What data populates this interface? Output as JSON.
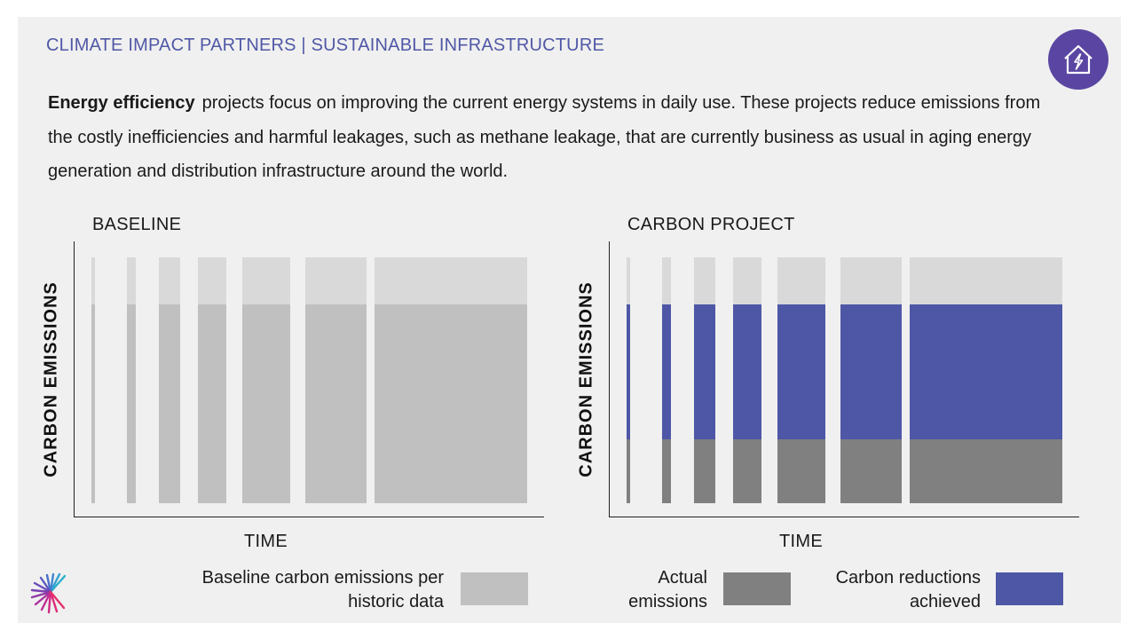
{
  "header": {
    "title": "CLIMATE IMPACT PARTNERS | SUSTAINABLE INFRASTRUCTURE"
  },
  "badge": {
    "icon": "house-energy-icon"
  },
  "intro": {
    "bold": "Energy efficiency",
    "text": "projects focus on improving the current energy systems in daily use. These projects reduce emissions from the costly inefficiencies and harmful leakages, such as methane leakage, that are currently business as usual in aging energy generation and distribution infrastructure around the world."
  },
  "colors": {
    "baseline": "#c0c0c0",
    "headroom": "#d9d9d9",
    "actual": "#808080",
    "reductions": "#4e57a6",
    "header": "#5058a6",
    "badge": "#5a46a2"
  },
  "charts": {
    "baseline": {
      "title": "BASELINE",
      "ylabel": "CARBON EMISSIONS",
      "xlabel": "TIME"
    },
    "project": {
      "title": "CARBON PROJECT",
      "ylabel": "CARBON EMISSIONS",
      "xlabel": "TIME"
    }
  },
  "legend": {
    "baseline": "Baseline carbon emissions per historic data",
    "actual": "Actual emissions",
    "reductions": "Carbon reductions achieved"
  },
  "logo": {
    "icon": "climate-impact-partners-logo"
  }
}
